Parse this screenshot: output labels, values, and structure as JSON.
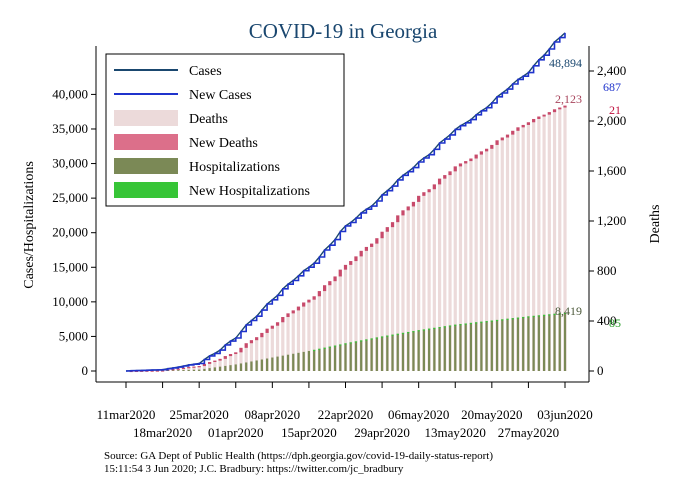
{
  "chart_data": {
    "type": "bar",
    "title": "COVID-19 in Georgia",
    "ylabel_left": "Cases/Hospitalizations",
    "ylabel_right": "Deaths",
    "ylim_left": [
      0,
      47000
    ],
    "ylim_right": [
      0,
      2600
    ],
    "yticks_left": [
      "0",
      "5,000",
      "10,000",
      "15,000",
      "20,000",
      "25,000",
      "30,000",
      "35,000",
      "40,000"
    ],
    "ytick_values_left": [
      0,
      5000,
      10000,
      15000,
      20000,
      25000,
      30000,
      35000,
      40000
    ],
    "yticks_right": [
      "0",
      "400",
      "800",
      "1,200",
      "1,600",
      "2,000",
      "2,400"
    ],
    "ytick_values_right": [
      0,
      400,
      800,
      1200,
      1600,
      2000,
      2400
    ],
    "xticks_upper": [
      "11mar2020",
      "25mar2020",
      "08apr2020",
      "22apr2020",
      "06may2020",
      "20may2020",
      "03jun2020"
    ],
    "xticks_lower": [
      "18mar2020",
      "01apr2020",
      "15apr2020",
      "29apr2020",
      "13may2020",
      "27may2020"
    ],
    "x_start": "2020-03-11",
    "x_end": "2020-06-03",
    "legend": {
      "position": "top-left",
      "entries": [
        {
          "label": "Cases",
          "color": "#1a476f",
          "kind": "line"
        },
        {
          "label": "New Cases",
          "color": "#1f33cc",
          "kind": "line"
        },
        {
          "label": "Deaths",
          "color": "#ecdada",
          "kind": "box"
        },
        {
          "label": "New Deaths",
          "color": "#dc6f8a",
          "kind": "box"
        },
        {
          "label": "Hospitalizations",
          "color": "#7b8956",
          "kind": "box"
        },
        {
          "label": "New Hospitalizations",
          "color": "#37c537",
          "kind": "box"
        }
      ]
    },
    "annotations": {
      "cases_last": "48,894",
      "new_cases_last": "687",
      "deaths_last": "2,123",
      "new_deaths_last": "21",
      "hosp_last": "8,419",
      "new_hosp_last": "85"
    },
    "annotation_colors": {
      "cases_last": "#1a476f",
      "new_cases_last": "#1f33cc",
      "deaths_last": "#a8455c",
      "new_deaths_last": "#c0103e",
      "hosp_last": "#4d5a3b",
      "new_hosp_last": "#2ea12e"
    },
    "series": [
      {
        "name": "Cases",
        "key": "cases",
        "axis": "left",
        "knots": [
          [
            "2020-03-11",
            0
          ],
          [
            "2020-03-18",
            200
          ],
          [
            "2020-03-25",
            1100
          ],
          [
            "2020-04-01",
            4800
          ],
          [
            "2020-04-08",
            10500
          ],
          [
            "2020-04-15",
            15000
          ],
          [
            "2020-04-22",
            20800
          ],
          [
            "2020-04-29",
            25400
          ],
          [
            "2020-05-06",
            30200
          ],
          [
            "2020-05-13",
            34800
          ],
          [
            "2020-05-20",
            38800
          ],
          [
            "2020-05-27",
            43400
          ],
          [
            "2020-06-03",
            48894
          ]
        ]
      },
      {
        "name": "Deaths",
        "key": "deaths",
        "axis": "right",
        "knots": [
          [
            "2020-03-11",
            0
          ],
          [
            "2020-03-18",
            5
          ],
          [
            "2020-03-25",
            40
          ],
          [
            "2020-04-01",
            150
          ],
          [
            "2020-04-08",
            370
          ],
          [
            "2020-04-15",
            570
          ],
          [
            "2020-04-22",
            840
          ],
          [
            "2020-04-29",
            1110
          ],
          [
            "2020-05-06",
            1400
          ],
          [
            "2020-05-13",
            1630
          ],
          [
            "2020-05-20",
            1810
          ],
          [
            "2020-05-27",
            2000
          ],
          [
            "2020-06-03",
            2123
          ]
        ]
      },
      {
        "name": "Hospitalizations",
        "key": "hosp",
        "axis": "left",
        "knots": [
          [
            "2020-03-11",
            0
          ],
          [
            "2020-03-18",
            50
          ],
          [
            "2020-03-25",
            200
          ],
          [
            "2020-04-01",
            950
          ],
          [
            "2020-04-08",
            1950
          ],
          [
            "2020-04-15",
            2900
          ],
          [
            "2020-04-22",
            4000
          ],
          [
            "2020-04-29",
            5000
          ],
          [
            "2020-05-06",
            5900
          ],
          [
            "2020-05-13",
            6700
          ],
          [
            "2020-05-20",
            7300
          ],
          [
            "2020-05-27",
            7900
          ],
          [
            "2020-06-03",
            8419
          ]
        ]
      }
    ],
    "source_lines": [
      "Source: GA Dept of Public Health (https://dph.georgia.gov/covid-19-daily-status-report)",
      "15:11:54   3 Jun 2020; J.C. Bradbury: https://twitter.com/jc_bradbury"
    ]
  }
}
